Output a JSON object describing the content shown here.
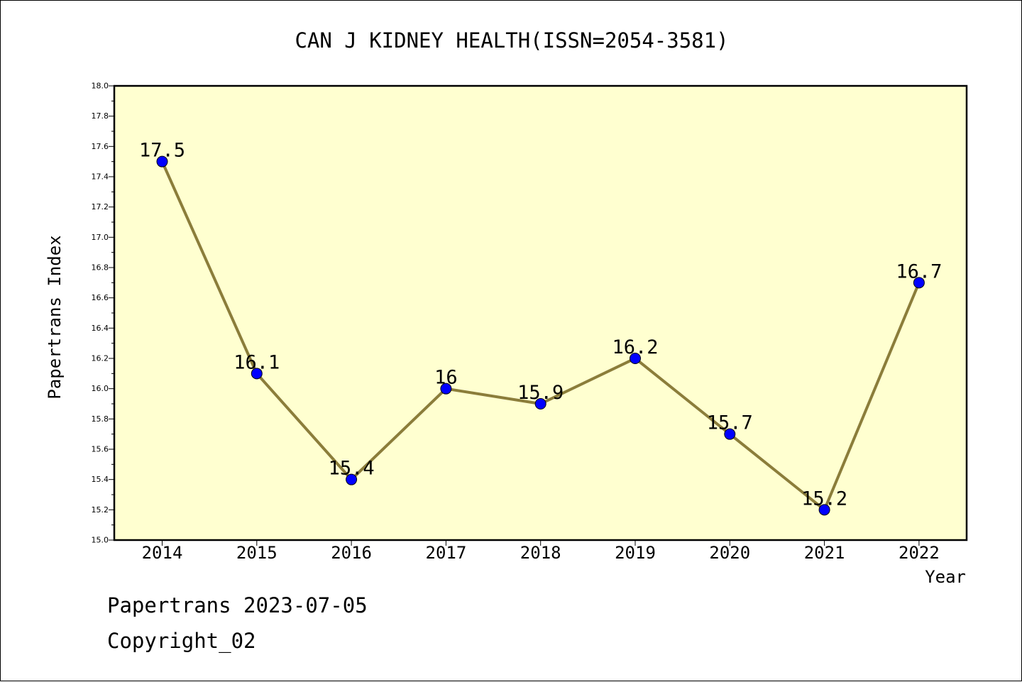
{
  "chart_data": {
    "type": "line",
    "title": "CAN J KIDNEY HEALTH(ISSN=2054-3581)",
    "xlabel": "Year",
    "ylabel": "Papertrans Index",
    "categories": [
      "2014",
      "2015",
      "2016",
      "2017",
      "2018",
      "2019",
      "2020",
      "2021",
      "2022"
    ],
    "series": [
      {
        "values": [
          17.5,
          16.1,
          15.4,
          16.0,
          15.9,
          16.2,
          15.7,
          15.2,
          16.7
        ],
        "labels": [
          "17.5",
          "16.1",
          "15.4",
          "16",
          "15.9",
          "16.2",
          "15.7",
          "15.2",
          "16.7"
        ]
      }
    ],
    "ylim": [
      15.0,
      18.0
    ],
    "yticks": [
      "15.0",
      "15.2",
      "15.4",
      "15.6",
      "15.8",
      "16.0",
      "16.2",
      "16.4",
      "16.6",
      "16.8",
      "17.0",
      "17.2",
      "17.4",
      "17.6",
      "17.8",
      "18.0"
    ],
    "grid": false,
    "colors": {
      "plot_background": "#ffffd0",
      "line": "#8b7d3a",
      "marker": "#0000ff"
    }
  },
  "footer": {
    "line1": "Papertrans 2023-07-05",
    "line2": "Copyright_02"
  }
}
